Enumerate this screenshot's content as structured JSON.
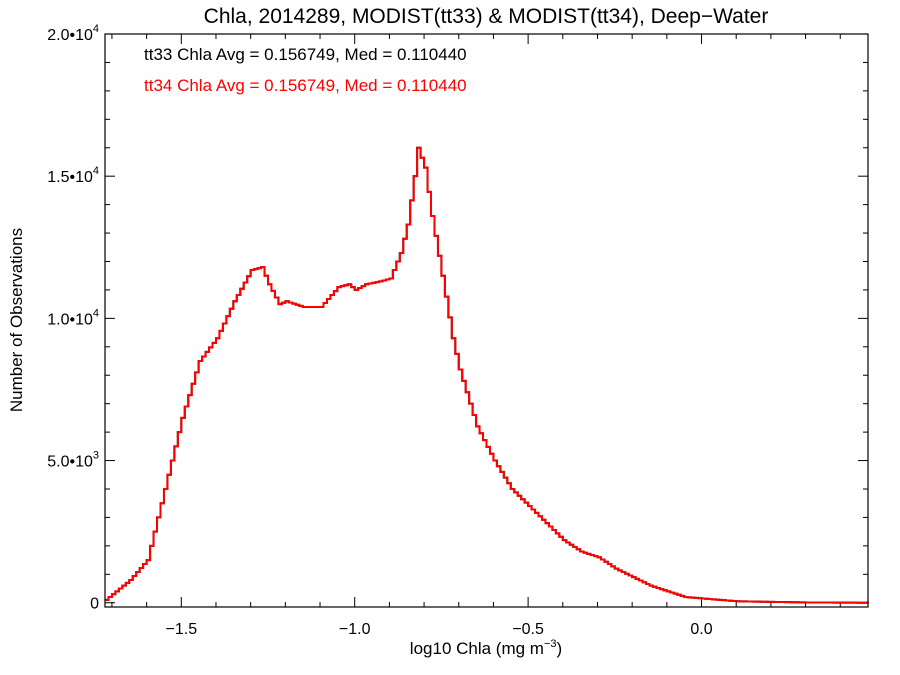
{
  "chart_data": {
    "type": "line",
    "title": "Chla, 2014289, MODIST(tt33) & MODIST(tt34), Deep−Water",
    "xlabel_main": "log10 Chla (mg m",
    "xlabel_sup": "−3",
    "xlabel_end": ")",
    "ylabel": "Number of Observations",
    "xlim": [
      -1.72,
      0.48
    ],
    "ylim": [
      -150,
      20000
    ],
    "x_ticks": [
      {
        "value": -1.5,
        "label": "−1.5"
      },
      {
        "value": -1.0,
        "label": "−1.0"
      },
      {
        "value": -0.5,
        "label": "−0.5"
      },
      {
        "value": 0.0,
        "label": "0.0"
      }
    ],
    "y_ticks": [
      {
        "value": 0,
        "mant": "0",
        "exp": ""
      },
      {
        "value": 5000,
        "mant": "5.0•10",
        "exp": "3"
      },
      {
        "value": 10000,
        "mant": "1.0•10",
        "exp": "4"
      },
      {
        "value": 15000,
        "mant": "1.5•10",
        "exp": "4"
      },
      {
        "value": 20000,
        "mant": "2.0•10",
        "exp": "4"
      }
    ],
    "annotations": [
      {
        "text": "tt33 Chla Avg = 0.156749, Med = 0.110440",
        "color": "#000000"
      },
      {
        "text": "tt34 Chla Avg = 0.156749, Med = 0.110440",
        "color": "#ff0000"
      }
    ],
    "series": [
      {
        "color": "#000000",
        "x": [
          -1.72,
          -1.65,
          -1.6,
          -1.55,
          -1.5,
          -1.45,
          -1.4,
          -1.35,
          -1.3,
          -1.27,
          -1.25,
          -1.22,
          -1.2,
          -1.15,
          -1.1,
          -1.05,
          -1.02,
          -1.0,
          -0.97,
          -0.93,
          -0.9,
          -0.87,
          -0.85,
          -0.83,
          -0.82,
          -0.8,
          -0.78,
          -0.75,
          -0.72,
          -0.7,
          -0.65,
          -0.6,
          -0.55,
          -0.5,
          -0.45,
          -0.4,
          -0.35,
          -0.3,
          -0.25,
          -0.2,
          -0.15,
          -0.1,
          -0.05,
          0.0,
          0.05,
          0.1,
          0.2,
          0.3,
          0.48
        ],
        "y": [
          100,
          800,
          1500,
          4000,
          6500,
          8500,
          9300,
          10600,
          11700,
          11800,
          11200,
          10500,
          10600,
          10400,
          10400,
          11100,
          11200,
          11000,
          11200,
          11300,
          11400,
          12300,
          13300,
          15000,
          16000,
          15300,
          13600,
          11500,
          9300,
          8200,
          6200,
          5000,
          4000,
          3400,
          2800,
          2200,
          1800,
          1600,
          1200,
          900,
          600,
          400,
          200,
          150,
          100,
          50,
          30,
          10,
          0
        ]
      },
      {
        "color": "#ff0000",
        "x": [
          -1.72,
          -1.65,
          -1.6,
          -1.55,
          -1.5,
          -1.45,
          -1.4,
          -1.35,
          -1.3,
          -1.27,
          -1.25,
          -1.22,
          -1.2,
          -1.15,
          -1.1,
          -1.05,
          -1.02,
          -1.0,
          -0.97,
          -0.93,
          -0.9,
          -0.87,
          -0.85,
          -0.83,
          -0.82,
          -0.8,
          -0.78,
          -0.75,
          -0.72,
          -0.7,
          -0.65,
          -0.6,
          -0.55,
          -0.5,
          -0.45,
          -0.4,
          -0.35,
          -0.3,
          -0.25,
          -0.2,
          -0.15,
          -0.1,
          -0.05,
          0.0,
          0.05,
          0.1,
          0.2,
          0.3,
          0.48
        ],
        "y": [
          100,
          800,
          1500,
          4000,
          6500,
          8500,
          9300,
          10600,
          11700,
          11800,
          11200,
          10500,
          10600,
          10400,
          10400,
          11100,
          11200,
          11000,
          11200,
          11300,
          11400,
          12300,
          13300,
          15000,
          16000,
          15300,
          13600,
          11500,
          9300,
          8200,
          6200,
          5000,
          4000,
          3400,
          2800,
          2200,
          1800,
          1600,
          1200,
          900,
          600,
          400,
          200,
          150,
          100,
          50,
          30,
          10,
          0
        ]
      }
    ]
  }
}
